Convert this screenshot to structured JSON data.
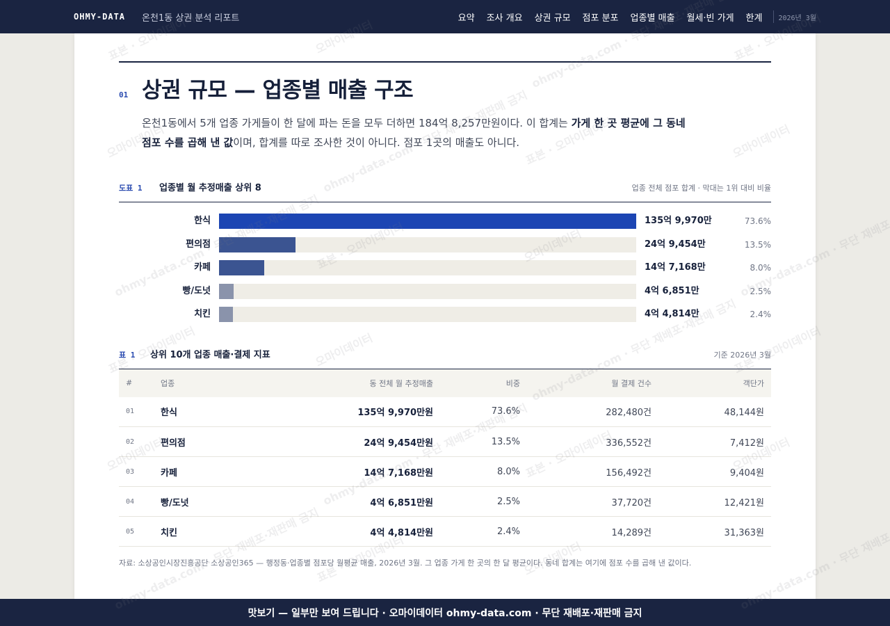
{
  "topbar": {
    "brand": "OHMY-DATA",
    "report_title": "온천1동 상권 분석 리포트",
    "nav": [
      "요약",
      "조사 개요",
      "상권 규모",
      "점포 분포",
      "업종별 매출",
      "월세·빈 가게",
      "한계"
    ],
    "date": "2026년 3월"
  },
  "section": {
    "num": "01",
    "title": "상권 규모 — 업종별 매출 구조",
    "lede_part1": "온천1동에서 5개 업종 가게들이 한 달에 파는 돈을 모두 더하면 184억 8,257만원이다. 이 합계는 ",
    "lede_bold": "가게 한 곳 평균에 그 동네 점포 수를 곱해 낸 값",
    "lede_part2": "이며, 합계를 따로 조사한 것이 아니다. 점포 1곳의 매출도 아니다."
  },
  "figure": {
    "tag": "도표 1",
    "title": "업종별 월 추정매출 상위 8",
    "note": "업종 전체 점포 합계 · 막대는 1위 대비 비율"
  },
  "chart_data": {
    "type": "bar",
    "orientation": "horizontal",
    "categories": [
      "한식",
      "편의점",
      "카페",
      "빵/도넛",
      "치킨"
    ],
    "values": [
      13599.7,
      2494.54,
      1471.68,
      468.51,
      448.14
    ],
    "value_unit": "만원",
    "value_labels": [
      "135억 9,970만",
      "24억 9,454만",
      "14억 7,168만",
      "4억 6,851만",
      "4억 4,814만"
    ],
    "share_labels": [
      "73.6%",
      "13.5%",
      "8.0%",
      "2.5%",
      "2.4%"
    ],
    "bar_colors": [
      "#1c45b3",
      "#3b5491",
      "#3b5491",
      "#8a93ab",
      "#8a93ab"
    ],
    "title": "업종별 월 추정매출 상위 8",
    "xlim": [
      0,
      13599.7
    ]
  },
  "table": {
    "tag": "표 1",
    "title": "상위 10개 업종 매출·결제 지표",
    "note": "기준 2026년 3월",
    "headers": [
      "#",
      "업종",
      "동 전체 월 추정매출",
      "비중",
      "월 결제 건수",
      "객단가"
    ],
    "rows": [
      {
        "num": "01",
        "name": "한식",
        "sales": "135억 9,970만원",
        "share": "73.6%",
        "count": "282,480건",
        "price": "48,144원"
      },
      {
        "num": "02",
        "name": "편의점",
        "sales": "24억 9,454만원",
        "share": "13.5%",
        "count": "336,552건",
        "price": "7,412원"
      },
      {
        "num": "03",
        "name": "카페",
        "sales": "14억 7,168만원",
        "share": "8.0%",
        "count": "156,492건",
        "price": "9,404원"
      },
      {
        "num": "04",
        "name": "빵/도넛",
        "sales": "4억 6,851만원",
        "share": "2.5%",
        "count": "37,720건",
        "price": "12,421원"
      },
      {
        "num": "05",
        "name": "치킨",
        "sales": "4억 4,814만원",
        "share": "2.4%",
        "count": "14,289건",
        "price": "31,363원"
      }
    ]
  },
  "source": "자료: 소상공인시장진흥공단 소상공인365 — 행정동·업종별 점포당 월평균 매출, 2026년 3월. 그 업종 가게 한 곳의 한 달 평균이다. 동네 합계는 여기에 점포 수를 곱해 낸 값이다.",
  "footer": "맛보기 — 일부만 보여 드립니다 · 오마이데이터 ohmy-data.com · 무단 재배포·재판매 금지",
  "watermark": {
    "texts": [
      "표본 · 오마이데이터",
      "오마이데이터",
      "ohmy-data.com · 무단 재배포·재판매 금지"
    ]
  }
}
